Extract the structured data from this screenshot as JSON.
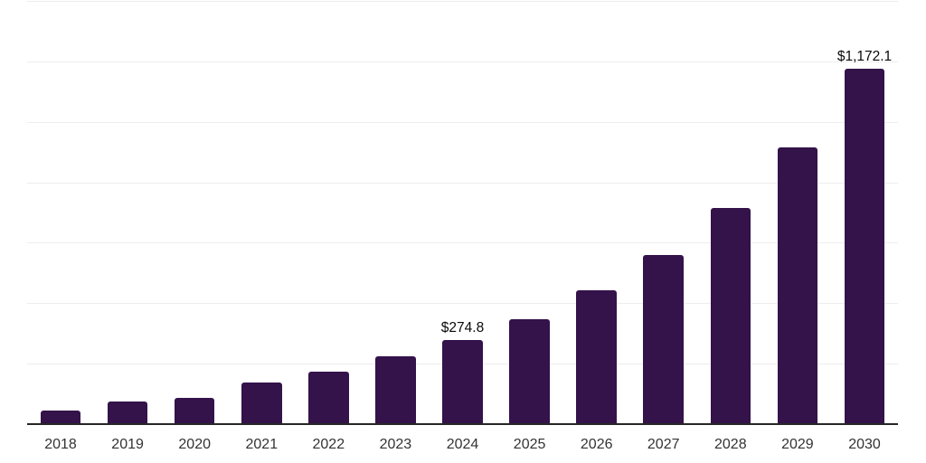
{
  "chart": {
    "background_color": "#ffffff",
    "bar_color": "#34124a",
    "gridline_color": "#ededed",
    "axis_line_color": "#262626",
    "value_label_color": "#0a0a0a",
    "tick_label_color": "#333333"
  },
  "chart_data": {
    "type": "bar",
    "title": "",
    "xlabel": "",
    "ylabel": "",
    "categories": [
      "2018",
      "2019",
      "2020",
      "2021",
      "2022",
      "2023",
      "2024",
      "2025",
      "2026",
      "2027",
      "2028",
      "2029",
      "2030"
    ],
    "values": [
      43,
      73,
      85,
      135,
      171,
      221,
      274.8,
      344,
      439,
      557,
      713,
      913,
      1172.1
    ],
    "point_labels": [
      "",
      "",
      "",
      "",
      "",
      "",
      "$274.8",
      "",
      "",
      "",
      "",
      "",
      "$1,172.1"
    ],
    "ylim": [
      0,
      1400
    ],
    "gridline_step": 200,
    "grid": true,
    "legend": false,
    "y_tick_labels_visible": false
  }
}
